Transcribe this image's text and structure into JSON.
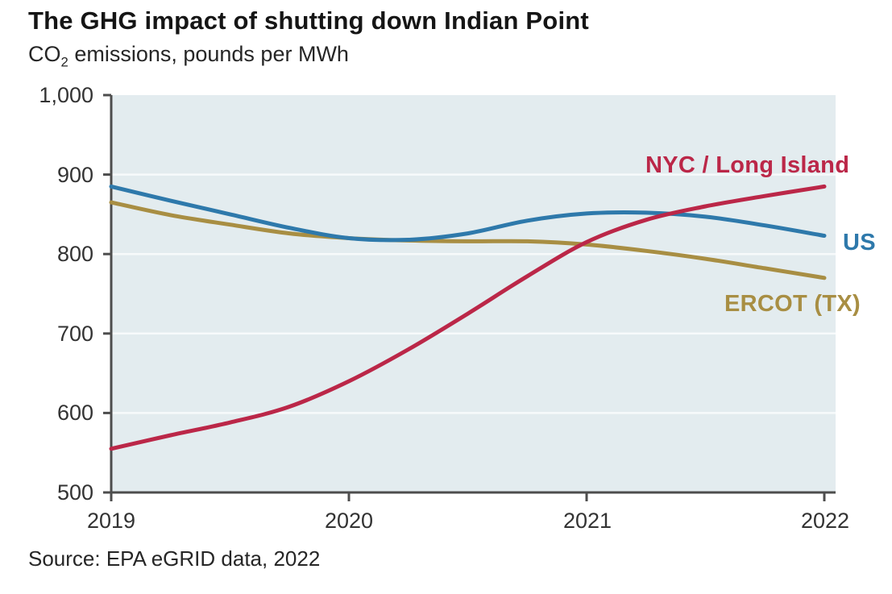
{
  "header": {
    "title": "The GHG impact of shutting down Indian Point",
    "subtitle_prefix": "CO",
    "subtitle_sub": "2",
    "subtitle_rest": " emissions, pounds per MWh"
  },
  "axes": {
    "y_tick_labels": [
      "1,000",
      "900",
      "800",
      "700",
      "600",
      "500"
    ],
    "x_tick_labels": [
      "2019",
      "2020",
      "2021",
      "2022"
    ]
  },
  "series_labels": {
    "nyc": "NYC / Long Island",
    "us": "US",
    "ercot": "ERCOT (TX)"
  },
  "source": {
    "text": "Source: EPA eGRID data, 2022"
  },
  "colors": {
    "nyc_red": "#bb2748",
    "us_blue": "#2e79ab",
    "ercot_gold": "#a88e43",
    "plot_background": "#e3ecef",
    "gridline": "#f7fafb",
    "axis": "#4d4d4d",
    "tick_text": "#333333",
    "title_text": "#151515"
  },
  "chart_data": {
    "type": "line",
    "title": "The GHG impact of shutting down Indian Point",
    "subtitle": "CO2 emissions, pounds per MWh",
    "source": "Source: EPA eGRID data, 2022",
    "xlabel": "",
    "ylabel": "CO2 emissions, pounds per MWh",
    "x": [
      2019,
      2020,
      2021,
      2022
    ],
    "xlim": [
      2019,
      2022
    ],
    "ylim": [
      500,
      1000
    ],
    "y_ticks": [
      1000,
      900,
      800,
      700,
      600,
      500
    ],
    "y_gridlines": [
      900,
      800,
      700,
      600
    ],
    "grid": true,
    "legend_position": "right-of-lines",
    "background": "#e3ecef",
    "series": [
      {
        "name": "ERCOT (TX)",
        "color": "#a88e43",
        "values": [
          865,
          820,
          812,
          770
        ],
        "points": [
          [
            2019,
            865
          ],
          [
            2019.25,
            849
          ],
          [
            2019.5,
            837
          ],
          [
            2019.75,
            826
          ],
          [
            2020,
            820
          ],
          [
            2020.25,
            817
          ],
          [
            2020.5,
            816
          ],
          [
            2020.75,
            816
          ],
          [
            2021,
            812
          ],
          [
            2021.25,
            804
          ],
          [
            2021.5,
            794
          ],
          [
            2021.75,
            782
          ],
          [
            2022,
            770
          ]
        ]
      },
      {
        "name": "US",
        "color": "#2e79ab",
        "values": [
          885,
          820,
          851,
          823
        ],
        "points": [
          [
            2019,
            885
          ],
          [
            2019.25,
            867
          ],
          [
            2019.5,
            850
          ],
          [
            2019.75,
            833
          ],
          [
            2020,
            820
          ],
          [
            2020.25,
            818
          ],
          [
            2020.5,
            826
          ],
          [
            2020.75,
            842
          ],
          [
            2021,
            851
          ],
          [
            2021.25,
            852
          ],
          [
            2021.5,
            847
          ],
          [
            2021.75,
            836
          ],
          [
            2022,
            823
          ]
        ]
      },
      {
        "name": "NYC / Long Island",
        "color": "#bb2748",
        "values": [
          555,
          640,
          815,
          885
        ],
        "points": [
          [
            2019,
            555
          ],
          [
            2019.25,
            572
          ],
          [
            2019.5,
            588
          ],
          [
            2019.75,
            608
          ],
          [
            2020,
            640
          ],
          [
            2020.25,
            680
          ],
          [
            2020.5,
            725
          ],
          [
            2020.75,
            772
          ],
          [
            2021,
            815
          ],
          [
            2021.25,
            843
          ],
          [
            2021.5,
            860
          ],
          [
            2021.75,
            873
          ],
          [
            2022,
            885
          ]
        ]
      }
    ]
  }
}
